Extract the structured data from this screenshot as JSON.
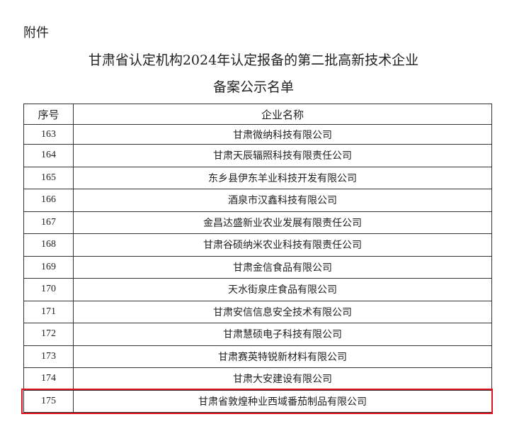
{
  "attachment_label": "附件",
  "title_line1": "甘肃省认定机构2024年认定报备的第二批高新技术企业",
  "title_line2": "备案公示名单",
  "table": {
    "headers": [
      "序号",
      "企业名称"
    ],
    "rows": [
      {
        "no": "163",
        "name": "甘肃微纳科技有限公司"
      },
      {
        "no": "164",
        "name": "甘肃天辰辐照科技有限责任公司"
      },
      {
        "no": "165",
        "name": "东乡县伊东羊业科技开发有限公司"
      },
      {
        "no": "166",
        "name": "酒泉市汉鑫科技有限公司"
      },
      {
        "no": "167",
        "name": "金昌达盛新业农业发展有限责任公司"
      },
      {
        "no": "168",
        "name": "甘肃谷硕纳米农业科技有限责任公司"
      },
      {
        "no": "169",
        "name": "甘肃金信食品有限公司"
      },
      {
        "no": "170",
        "name": "天水街泉庄食品有限公司"
      },
      {
        "no": "171",
        "name": "甘肃安信信息安全技术有限公司"
      },
      {
        "no": "172",
        "name": "甘肃慧硕电子科技有限公司"
      },
      {
        "no": "173",
        "name": "甘肃赛英特锐新材料有限公司"
      },
      {
        "no": "174",
        "name": "甘肃大安建设有限公司"
      },
      {
        "no": "175",
        "name": "甘肃省敦煌种业西域番茄制品有限公司"
      }
    ],
    "highlighted_row": "175",
    "highlight_color": "#e0141e"
  }
}
